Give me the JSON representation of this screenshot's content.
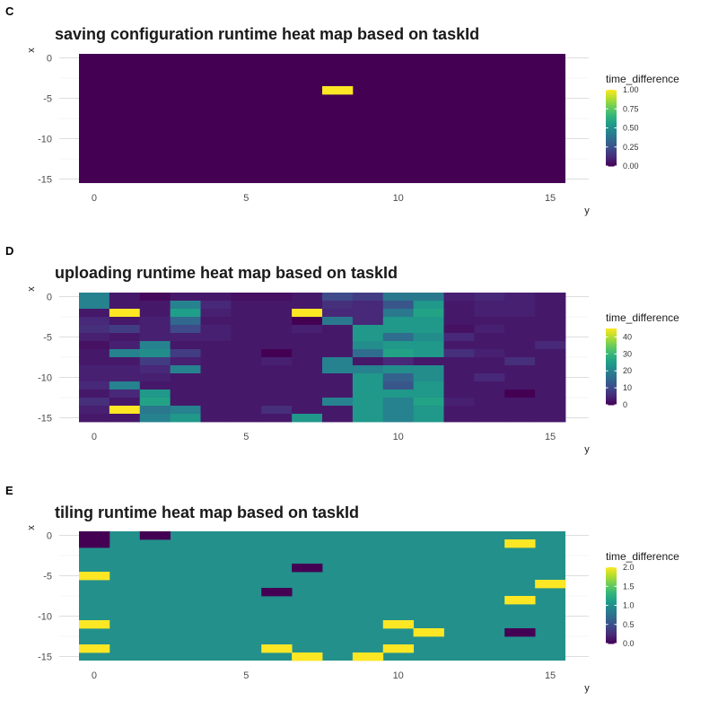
{
  "palette": [
    "#440154",
    "#482878",
    "#3E4A89",
    "#31688E",
    "#26828E",
    "#1F9E89",
    "#35B779",
    "#6DCD59",
    "#B4DE2C",
    "#FDE725"
  ],
  "chart_data": [
    {
      "tag": "C",
      "type": "heatmap",
      "title": "saving configuration runtime heat map based on taskId",
      "xlabel": "y",
      "ylabel": "x",
      "x_ticks": [
        0,
        5,
        10,
        15
      ],
      "y_ticks": [
        0,
        -5,
        -10,
        -15
      ],
      "xlim": [
        -0.5,
        15.5
      ],
      "ylim": [
        -15.5,
        0.5
      ],
      "legend": {
        "title": "time_difference",
        "min": 0,
        "max": 1,
        "ticks": [
          "0.00",
          "0.25",
          "0.50",
          "0.75",
          "1.00"
        ],
        "tick_values": [
          0,
          0.25,
          0.5,
          0.75,
          1
        ]
      },
      "default_value": 0,
      "cells": [
        {
          "x": 8,
          "y": -4,
          "value": 1.0
        }
      ]
    },
    {
      "tag": "D",
      "type": "heatmap",
      "title": "uploading runtime heat map based on taskId",
      "xlabel": "y",
      "ylabel": "x",
      "x_ticks": [
        0,
        5,
        10,
        15
      ],
      "y_ticks": [
        0,
        -5,
        -10,
        -15
      ],
      "xlim": [
        -0.5,
        15.5
      ],
      "ylim": [
        -15.5,
        0.5
      ],
      "legend": {
        "title": "time_difference",
        "min": 0,
        "max": 45,
        "ticks": [
          "0",
          "10",
          "20",
          "30",
          "40"
        ],
        "tick_values": [
          0,
          10,
          20,
          30,
          40
        ]
      },
      "grid": [
        [
          20,
          3,
          1,
          3,
          3,
          2,
          2,
          3,
          10,
          8,
          18,
          18,
          4,
          5,
          4,
          3
        ],
        [
          20,
          3,
          3,
          20,
          5,
          3,
          3,
          3,
          6,
          5,
          12,
          24,
          3,
          4,
          4,
          3
        ],
        [
          3,
          45,
          3,
          25,
          4,
          3,
          3,
          45,
          5,
          5,
          18,
          26,
          3,
          4,
          4,
          3
        ],
        [
          5,
          3,
          4,
          15,
          3,
          3,
          3,
          0,
          18,
          5,
          24,
          24,
          3,
          3,
          3,
          3
        ],
        [
          6,
          8,
          4,
          10,
          4,
          3,
          3,
          4,
          3,
          24,
          24,
          24,
          2,
          4,
          3,
          3
        ],
        [
          4,
          3,
          4,
          4,
          4,
          3,
          3,
          3,
          3,
          24,
          16,
          22,
          5,
          3,
          3,
          3
        ],
        [
          2,
          4,
          20,
          3,
          3,
          3,
          3,
          3,
          3,
          22,
          24,
          24,
          3,
          3,
          3,
          5
        ],
        [
          3,
          20,
          22,
          8,
          3,
          3,
          0,
          3,
          3,
          16,
          26,
          24,
          6,
          4,
          3,
          3
        ],
        [
          3,
          3,
          8,
          4,
          3,
          3,
          4,
          3,
          20,
          3,
          5,
          3,
          3,
          3,
          6,
          3
        ],
        [
          4,
          4,
          5,
          20,
          3,
          3,
          3,
          3,
          20,
          20,
          22,
          22,
          3,
          3,
          3,
          3
        ],
        [
          4,
          4,
          4,
          3,
          3,
          3,
          3,
          3,
          3,
          24,
          14,
          22,
          3,
          5,
          3,
          3
        ],
        [
          5,
          20,
          3,
          3,
          3,
          3,
          3,
          3,
          3,
          24,
          12,
          24,
          3,
          3,
          3,
          3
        ],
        [
          3,
          5,
          24,
          3,
          3,
          3,
          3,
          3,
          3,
          24,
          24,
          24,
          3,
          3,
          0,
          3
        ],
        [
          6,
          3,
          26,
          3,
          3,
          3,
          3,
          3,
          20,
          24,
          20,
          26,
          4,
          3,
          3,
          3
        ],
        [
          4,
          45,
          18,
          20,
          3,
          3,
          6,
          3,
          3,
          24,
          20,
          24,
          3,
          3,
          3,
          3
        ],
        [
          3,
          3,
          20,
          24,
          3,
          3,
          3,
          24,
          3,
          24,
          20,
          24,
          3,
          3,
          3,
          3
        ]
      ]
    },
    {
      "tag": "E",
      "type": "heatmap",
      "title": "tiling runtime heat map based on taskId",
      "xlabel": "y",
      "ylabel": "x",
      "x_ticks": [
        0,
        5,
        10,
        15
      ],
      "y_ticks": [
        0,
        -5,
        -10,
        -15
      ],
      "xlim": [
        -0.5,
        15.5
      ],
      "ylim": [
        -15.5,
        0.5
      ],
      "legend": {
        "title": "time_difference",
        "min": 0,
        "max": 2,
        "ticks": [
          "0.0",
          "0.5",
          "1.0",
          "1.5",
          "2.0"
        ],
        "tick_values": [
          0,
          0.5,
          1,
          1.5,
          2
        ]
      },
      "default_value": 1,
      "cells": [
        {
          "x": 0,
          "y": 0,
          "value": 0
        },
        {
          "x": 0,
          "y": -1,
          "value": 0
        },
        {
          "x": 2,
          "y": 0,
          "value": 0
        },
        {
          "x": 14,
          "y": -1,
          "value": 2
        },
        {
          "x": 7,
          "y": -4,
          "value": 0
        },
        {
          "x": 0,
          "y": -5,
          "value": 2
        },
        {
          "x": 15,
          "y": -6,
          "value": 2
        },
        {
          "x": 6,
          "y": -7,
          "value": 0
        },
        {
          "x": 14,
          "y": -8,
          "value": 2
        },
        {
          "x": 0,
          "y": -11,
          "value": 2
        },
        {
          "x": 10,
          "y": -11,
          "value": 2
        },
        {
          "x": 11,
          "y": -12,
          "value": 2
        },
        {
          "x": 14,
          "y": -12,
          "value": 0
        },
        {
          "x": 0,
          "y": -14,
          "value": 2
        },
        {
          "x": 6,
          "y": -14,
          "value": 2
        },
        {
          "x": 10,
          "y": -14,
          "value": 2
        },
        {
          "x": 7,
          "y": -15,
          "value": 2
        },
        {
          "x": 9,
          "y": -15,
          "value": 2
        }
      ]
    }
  ]
}
